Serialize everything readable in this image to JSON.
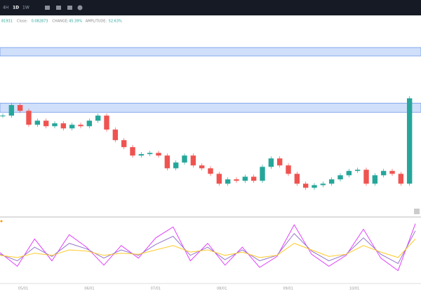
{
  "toolbar": {
    "intervals": [
      "4H",
      "1D",
      "1W"
    ]
  },
  "info": {
    "lead": "81931",
    "items": [
      {
        "label": "Close:",
        "value": "0.082873"
      },
      {
        "label": "CHANGE:",
        "value": "45.39%"
      },
      {
        "label": "AMPLITUDE:",
        "value": "52.63%"
      }
    ]
  },
  "chart_data": {
    "type": "candlestick",
    "ylim": [
      0.035,
      0.1165
    ],
    "zones": [
      [
        0.1005,
        0.104
      ],
      [
        0.0771,
        0.0809
      ]
    ],
    "close": [
      0.0757,
      0.0801,
      0.0777,
      0.0719,
      0.0736,
      0.0713,
      0.0725,
      0.0704,
      0.0719,
      0.0713,
      0.0736,
      0.0757,
      0.0699,
      0.0655,
      0.0626,
      0.0591,
      0.0597,
      0.0602,
      0.0591,
      0.0538,
      0.0562,
      0.0591,
      0.055,
      0.0538,
      0.0515,
      0.0474,
      0.0492,
      0.0486,
      0.0503,
      0.0486,
      0.0544,
      0.0579,
      0.055,
      0.0515,
      0.0474,
      0.0457,
      0.0468,
      0.0474,
      0.0492,
      0.0509,
      0.0527,
      0.0532,
      0.0474,
      0.0509,
      0.0527,
      0.0515,
      0.0474,
      0.0829
    ],
    "up_color": "#26a69a",
    "down_color": "#ef5350",
    "x_labels": [
      "05/01",
      "06/01",
      "07/01",
      "08/01",
      "09/01",
      "10/01"
    ],
    "indicator": {
      "ylim": [
        0,
        100
      ],
      "series": [
        {
          "color": "#e040fb",
          "values": [
            45,
            20,
            70,
            30,
            78,
            55,
            22,
            58,
            35,
            72,
            92,
            30,
            62,
            22,
            55,
            18,
            38,
            96,
            42,
            20,
            40,
            88,
            35,
            12,
            98
          ]
        },
        {
          "color": "#9575cd",
          "values": [
            42,
            30,
            55,
            38,
            62,
            52,
            35,
            50,
            40,
            60,
            75,
            40,
            55,
            32,
            50,
            30,
            40,
            80,
            48,
            30,
            42,
            72,
            42,
            25,
            85
          ]
        },
        {
          "color": "#ffca28",
          "values": [
            40,
            36,
            44,
            40,
            50,
            48,
            40,
            44,
            42,
            50,
            58,
            46,
            50,
            40,
            46,
            36,
            40,
            62,
            50,
            38,
            42,
            58,
            46,
            36,
            70
          ]
        }
      ]
    }
  }
}
